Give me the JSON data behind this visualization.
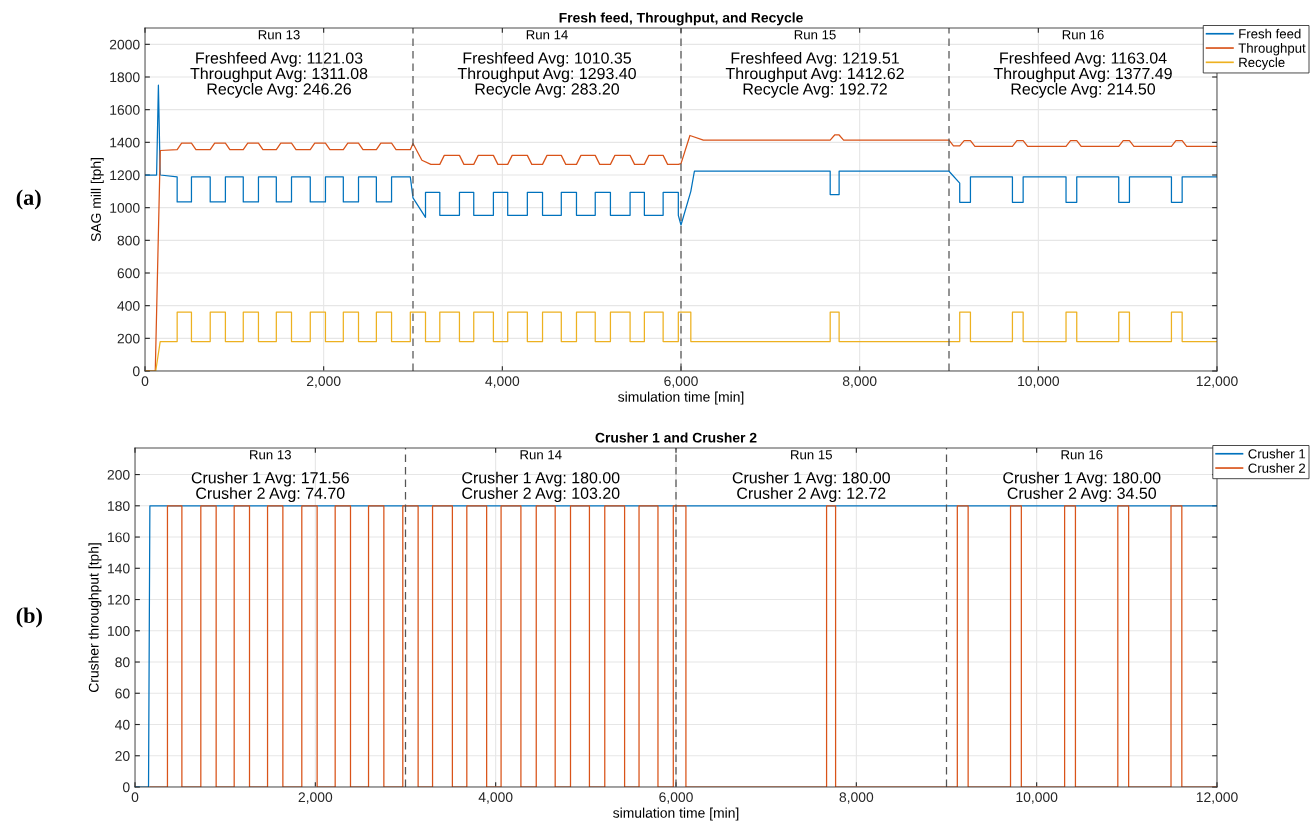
{
  "chart_data": [
    {
      "type": "line",
      "title": "Fresh feed, Throughput, and Recycle",
      "xlabel": "simulation time [min]",
      "ylabel": "SAG mill [tph]",
      "xlim": [
        0,
        12000
      ],
      "xticks": [
        0,
        {
          "value": 2000,
          "label": "2,000"
        },
        {
          "value": 4000,
          "label": "4,000"
        },
        {
          "value": 6000,
          "label": "6,000"
        },
        {
          "value": 8000,
          "label": "8,000"
        },
        {
          "value": 10000,
          "label": "10,000"
        },
        {
          "value": 12000,
          "label": "12,000"
        }
      ],
      "ylim": [
        0,
        2100
      ],
      "yticks": [
        0,
        200,
        400,
        600,
        800,
        1000,
        1200,
        1400,
        1600,
        1800,
        2000
      ],
      "grid": true,
      "legend": "top right",
      "ref_lines": [
        {
          "axis": "x",
          "value": 3000,
          "color": "#555555",
          "line_style": "dashed"
        },
        {
          "axis": "x",
          "value": 6000,
          "color": "#555555",
          "line_style": "dashed"
        },
        {
          "axis": "x",
          "value": 9000,
          "color": "#555555",
          "line_style": "dashed"
        }
      ],
      "annotations": [
        "(a)",
        "Run 13",
        "Freshfeed Avg: 1121.03\nThroughput Avg: 1311.08\nRecycle Avg: 246.26",
        "Run 14",
        "Freshfeed Avg: 1010.35\nThroughput Avg: 1293.40\nRecycle Avg: 283.20",
        "Run 15",
        "Freshfeed Avg: 1219.51\nThroughput Avg: 1412.62\nRecycle Avg: 192.72",
        "Run 16",
        "Freshfeed Avg: 1163.04\nThroughput Avg: 1377.49\nRecycle Avg: 214.50"
      ],
      "series": [
        {
          "name": "Fresh feed",
          "color": "#0072bd",
          "x": [
            0,
            130,
            150,
            170,
            360,
            360,
            520,
            520,
            730,
            730,
            900,
            900,
            1100,
            1100,
            1270,
            1270,
            1470,
            1470,
            1640,
            1640,
            1850,
            1850,
            2020,
            2020,
            2220,
            2220,
            2390,
            2390,
            2590,
            2590,
            2760,
            2760,
            2970,
            3000,
            3140,
            3140,
            3300,
            3300,
            3520,
            3520,
            3680,
            3680,
            3900,
            3900,
            4060,
            4060,
            4280,
            4280,
            4450,
            4450,
            4660,
            4660,
            4830,
            4830,
            5040,
            5040,
            5210,
            5210,
            5430,
            5430,
            5590,
            5590,
            5800,
            5800,
            5970,
            5970,
            6000,
            6110,
            6150,
            7670,
            7670,
            7770,
            7770,
            9000,
            9120,
            9120,
            9240,
            9240,
            9710,
            9710,
            9830,
            9830,
            10310,
            10310,
            10430,
            10430,
            10900,
            10900,
            11020,
            11020,
            11490,
            11490,
            11610,
            11610,
            12000
          ],
          "values": [
            1200,
            1200,
            1750,
            1200,
            1188,
            1035,
            1035,
            1188,
            1188,
            1035,
            1035,
            1188,
            1188,
            1035,
            1035,
            1188,
            1188,
            1035,
            1035,
            1188,
            1188,
            1035,
            1035,
            1188,
            1188,
            1035,
            1035,
            1188,
            1188,
            1035,
            1035,
            1188,
            1188,
            1060,
            941,
            1094,
            1094,
            953,
            953,
            1094,
            1094,
            953,
            953,
            1094,
            1094,
            953,
            953,
            1094,
            1094,
            953,
            953,
            1094,
            1094,
            953,
            953,
            1094,
            1094,
            953,
            953,
            1094,
            1094,
            953,
            953,
            1094,
            1094,
            953,
            894,
            1100,
            1223,
            1223,
            1080,
            1080,
            1223,
            1223,
            1150,
            1033,
            1033,
            1188,
            1188,
            1033,
            1033,
            1188,
            1188,
            1033,
            1033,
            1188,
            1188,
            1033,
            1033,
            1188,
            1188,
            1033,
            1033,
            1188,
            1188
          ]
        },
        {
          "name": "Throughput",
          "color": "#d95319",
          "x": [
            0,
            115,
            171,
            360,
            410,
            520,
            570,
            730,
            780,
            900,
            950,
            1100,
            1150,
            1270,
            1320,
            1470,
            1520,
            1640,
            1690,
            1850,
            1900,
            2020,
            2070,
            2220,
            2270,
            2390,
            2440,
            2590,
            2640,
            2760,
            2810,
            2970,
            3000,
            3100,
            3200,
            3300,
            3350,
            3520,
            3570,
            3680,
            3730,
            3900,
            3950,
            4060,
            4110,
            4280,
            4330,
            4450,
            4500,
            4660,
            4710,
            4830,
            4880,
            5040,
            5090,
            5210,
            5260,
            5430,
            5480,
            5590,
            5640,
            5800,
            5850,
            5970,
            6000,
            6100,
            6250,
            7670,
            7720,
            7770,
            7820,
            9000,
            9050,
            9120,
            9170,
            9240,
            9290,
            9710,
            9760,
            9830,
            9880,
            10310,
            10360,
            10430,
            10480,
            10900,
            10950,
            11020,
            11070,
            11490,
            11540,
            11610,
            11660,
            12000
          ],
          "values": [
            0,
            0,
            1350,
            1355,
            1395,
            1395,
            1355,
            1355,
            1395,
            1395,
            1355,
            1355,
            1395,
            1395,
            1355,
            1355,
            1395,
            1395,
            1355,
            1355,
            1395,
            1395,
            1355,
            1355,
            1395,
            1395,
            1355,
            1355,
            1395,
            1395,
            1355,
            1355,
            1393,
            1290,
            1265,
            1265,
            1320,
            1320,
            1265,
            1265,
            1320,
            1320,
            1265,
            1265,
            1320,
            1320,
            1265,
            1265,
            1320,
            1320,
            1265,
            1265,
            1320,
            1320,
            1265,
            1265,
            1320,
            1320,
            1265,
            1265,
            1320,
            1320,
            1265,
            1265,
            1270,
            1442,
            1414,
            1414,
            1445,
            1445,
            1414,
            1414,
            1378,
            1378,
            1410,
            1410,
            1375,
            1375,
            1410,
            1410,
            1375,
            1375,
            1410,
            1410,
            1375,
            1375,
            1410,
            1410,
            1375,
            1375,
            1410,
            1410,
            1375,
            1375
          ]
        },
        {
          "name": "Recycle",
          "color": "#edb120",
          "x": [
            0,
            120,
            170,
            360,
            360,
            520,
            520,
            730,
            730,
            900,
            900,
            1100,
            1100,
            1270,
            1270,
            1470,
            1470,
            1640,
            1640,
            1850,
            1850,
            2020,
            2020,
            2220,
            2220,
            2390,
            2390,
            2590,
            2590,
            2760,
            2760,
            2970,
            2970,
            3140,
            3140,
            3300,
            3300,
            3520,
            3520,
            3680,
            3680,
            3900,
            3900,
            4060,
            4060,
            4280,
            4280,
            4450,
            4450,
            4660,
            4660,
            4830,
            4830,
            5040,
            5040,
            5210,
            5210,
            5430,
            5430,
            5590,
            5590,
            5800,
            5800,
            5970,
            5970,
            6110,
            6110,
            7670,
            7670,
            7770,
            7770,
            9120,
            9120,
            9240,
            9240,
            9710,
            9710,
            9830,
            9830,
            10310,
            10310,
            10430,
            10430,
            10900,
            10900,
            11020,
            11020,
            11490,
            11490,
            11610,
            11610,
            12000
          ],
          "values": [
            0,
            0,
            180,
            180,
            360,
            360,
            180,
            180,
            360,
            360,
            180,
            180,
            360,
            360,
            180,
            180,
            360,
            360,
            180,
            180,
            360,
            360,
            180,
            180,
            360,
            360,
            180,
            180,
            360,
            360,
            180,
            180,
            360,
            360,
            180,
            180,
            360,
            360,
            180,
            180,
            360,
            360,
            180,
            180,
            360,
            360,
            180,
            180,
            360,
            360,
            180,
            180,
            360,
            360,
            180,
            180,
            360,
            360,
            180,
            180,
            360,
            360,
            180,
            180,
            360,
            360,
            180,
            180,
            360,
            360,
            180,
            180,
            360,
            360,
            180,
            180,
            360,
            360,
            180,
            180,
            360,
            360,
            180,
            180,
            360,
            360,
            180,
            180,
            360,
            360,
            180,
            180
          ]
        }
      ]
    },
    {
      "type": "line",
      "title": "Crusher 1 and Crusher 2",
      "xlabel": "simulation time [min]",
      "ylabel": "Crusher throughput [tph]",
      "xlim": [
        0,
        12000
      ],
      "xticks": [
        0,
        {
          "value": 2000,
          "label": "2,000"
        },
        {
          "value": 4000,
          "label": "4,000"
        },
        {
          "value": 6000,
          "label": "6,000"
        },
        {
          "value": 8000,
          "label": "8,000"
        },
        {
          "value": 10000,
          "label": "10,000"
        },
        {
          "value": 12000,
          "label": "12,000"
        }
      ],
      "ylim": [
        0,
        217
      ],
      "yticks": [
        0,
        20,
        40,
        60,
        80,
        100,
        120,
        140,
        160,
        180,
        200
      ],
      "grid": true,
      "legend": "top right",
      "ref_lines": [
        {
          "axis": "x",
          "value": 3000,
          "color": "#555555",
          "line_style": "dashed"
        },
        {
          "axis": "x",
          "value": 6000,
          "color": "#555555",
          "line_style": "dashed"
        },
        {
          "axis": "x",
          "value": 9000,
          "color": "#555555",
          "line_style": "dashed"
        }
      ],
      "annotations": [
        "(b)",
        "Run 13",
        "Crusher 1 Avg: 171.56\nCrusher 2 Avg: 74.70",
        "Run 14",
        "Crusher 1 Avg: 180.00\nCrusher 2 Avg: 103.20",
        "Run 15",
        "Crusher 1 Avg: 180.00\nCrusher 2 Avg: 12.72",
        "Run 16",
        "Crusher 1 Avg: 180.00\nCrusher 2 Avg: 34.50"
      ],
      "series": [
        {
          "name": "Crusher 1",
          "color": "#0072bd",
          "x": [
            0,
            150,
            165,
            12000
          ],
          "values": [
            0,
            0,
            180,
            180
          ]
        },
        {
          "name": "Crusher 2",
          "color": "#d95319",
          "x": [
            170,
            360,
            360,
            520,
            520,
            730,
            730,
            900,
            900,
            1100,
            1100,
            1270,
            1270,
            1470,
            1470,
            1640,
            1640,
            1850,
            1850,
            2020,
            2020,
            2220,
            2220,
            2390,
            2390,
            2590,
            2590,
            2760,
            2760,
            2970,
            2970,
            3140,
            3140,
            3300,
            3300,
            3520,
            3520,
            3680,
            3680,
            3900,
            3900,
            4060,
            4060,
            4280,
            4280,
            4450,
            4450,
            4660,
            4660,
            4830,
            4830,
            5040,
            5040,
            5210,
            5210,
            5430,
            5430,
            5590,
            5590,
            5800,
            5800,
            5970,
            5970,
            6110,
            6110,
            7670,
            7670,
            7770,
            7770,
            9120,
            9120,
            9240,
            9240,
            9710,
            9710,
            9830,
            9830,
            10310,
            10310,
            10430,
            10430,
            10900,
            10900,
            11020,
            11020,
            11490,
            11490,
            11610,
            11610,
            12000
          ],
          "values": [
            0,
            0,
            180,
            180,
            0,
            0,
            180,
            180,
            0,
            0,
            180,
            180,
            0,
            0,
            180,
            180,
            0,
            0,
            180,
            180,
            0,
            0,
            180,
            180,
            0,
            0,
            180,
            180,
            0,
            0,
            180,
            180,
            0,
            0,
            180,
            180,
            0,
            0,
            180,
            180,
            0,
            0,
            180,
            180,
            0,
            0,
            180,
            180,
            0,
            0,
            180,
            180,
            0,
            0,
            180,
            180,
            0,
            0,
            180,
            180,
            0,
            0,
            180,
            180,
            0,
            0,
            180,
            180,
            0,
            0,
            180,
            180,
            0,
            0,
            180,
            180,
            0,
            0,
            180,
            180,
            0,
            0,
            180,
            180,
            0,
            0,
            180,
            180,
            0,
            0
          ]
        }
      ]
    }
  ]
}
